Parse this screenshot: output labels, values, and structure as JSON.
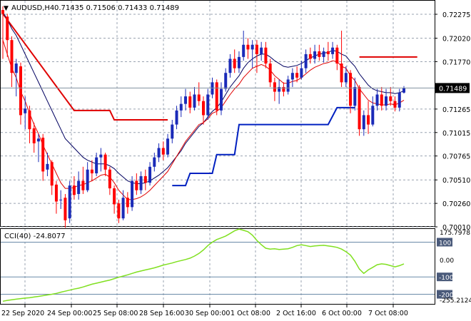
{
  "main_chart": {
    "header": {
      "symbol": "AUDUSD,H4",
      "ohlc": "0.71435 0.71506 0.71433 0.71489"
    },
    "current_price": "0.71489",
    "price_ticks": [
      "0.72275",
      "0.72020",
      "0.71770",
      "0.71265",
      "0.71015",
      "0.70765",
      "0.70510",
      "0.70260",
      "0.70010"
    ],
    "colors": {
      "bull_candle": "#1a2ab8",
      "bear_candle": "#ff0000",
      "ma_fast": "#e00000",
      "ma_slow": "#000060",
      "stop_upper": "#e00000",
      "stop_lower": "#0020c0",
      "grid": "#9aa3b0",
      "price_line": "#8090a0"
    }
  },
  "cci_panel": {
    "label": "CCI(40) -24.8077",
    "scale_ticks": [
      "175.7978",
      "100",
      "0.00",
      "-100",
      "-200",
      "-255.2124"
    ],
    "line_color": "#80e020"
  },
  "time_axis": {
    "labels": [
      "22 Sep 2020",
      "24 Sep 00:00",
      "25 Sep 08:00",
      "28 Sep 16:00",
      "30 Sep 00:00",
      "1 Oct 08:00",
      "2 Oct 16:00",
      "6 Oct 00:00",
      "7 Oct 08:00"
    ]
  },
  "chart_data": [
    {
      "type": "candlestick",
      "title": "AUDUSD,H4",
      "ylim": [
        0.7001,
        0.72275
      ],
      "last_price": 0.71489,
      "candles": [
        [
          0.7232,
          0.7228,
          0.7236,
          0.718
        ],
        [
          0.7225,
          0.72,
          0.7228,
          0.7182
        ],
        [
          0.72,
          0.7165,
          0.7204,
          0.715
        ],
        [
          0.7165,
          0.7175,
          0.718,
          0.714
        ],
        [
          0.7172,
          0.712,
          0.7176,
          0.711
        ],
        [
          0.7122,
          0.7127,
          0.714,
          0.7105
        ],
        [
          0.7125,
          0.7105,
          0.713,
          0.709
        ],
        [
          0.7106,
          0.709,
          0.7112,
          0.708
        ],
        [
          0.7092,
          0.7095,
          0.71,
          0.707
        ],
        [
          0.7096,
          0.706,
          0.71,
          0.705
        ],
        [
          0.7062,
          0.7068,
          0.708,
          0.7055
        ],
        [
          0.707,
          0.7045,
          0.7072,
          0.7035
        ],
        [
          0.7046,
          0.7028,
          0.705,
          0.7015
        ],
        [
          0.703,
          0.703,
          0.704,
          0.702
        ],
        [
          0.7032,
          0.7008,
          0.7036,
          0.7
        ],
        [
          0.701,
          0.7045,
          0.705,
          0.7005
        ],
        [
          0.7045,
          0.7035,
          0.7055,
          0.703
        ],
        [
          0.7036,
          0.705,
          0.706,
          0.703
        ],
        [
          0.705,
          0.704,
          0.7065,
          0.7036
        ],
        [
          0.704,
          0.7062,
          0.707,
          0.7038
        ],
        [
          0.7062,
          0.7058,
          0.7072,
          0.705
        ],
        [
          0.7058,
          0.7075,
          0.708,
          0.7055
        ],
        [
          0.7075,
          0.7078,
          0.7085,
          0.706
        ],
        [
          0.7078,
          0.7062,
          0.708,
          0.7055
        ],
        [
          0.7062,
          0.7042,
          0.7065,
          0.7035
        ],
        [
          0.7042,
          0.7025,
          0.7045,
          0.7015
        ],
        [
          0.7026,
          0.701,
          0.703,
          0.7005
        ],
        [
          0.701,
          0.7032,
          0.704,
          0.7008
        ],
        [
          0.7032,
          0.7022,
          0.7038,
          0.7015
        ],
        [
          0.7022,
          0.705,
          0.7055,
          0.7018
        ],
        [
          0.705,
          0.704,
          0.7058,
          0.7035
        ],
        [
          0.704,
          0.7055,
          0.706,
          0.7036
        ],
        [
          0.7055,
          0.7048,
          0.7062,
          0.704
        ],
        [
          0.7048,
          0.7065,
          0.707,
          0.7045
        ],
        [
          0.7065,
          0.7075,
          0.708,
          0.706
        ],
        [
          0.7075,
          0.7085,
          0.709,
          0.707
        ],
        [
          0.7085,
          0.7078,
          0.7092,
          0.7072
        ],
        [
          0.7078,
          0.7095,
          0.71,
          0.7075
        ],
        [
          0.7095,
          0.711,
          0.7115,
          0.709
        ],
        [
          0.711,
          0.7125,
          0.713,
          0.7105
        ],
        [
          0.7125,
          0.7132,
          0.714,
          0.7118
        ],
        [
          0.7132,
          0.714,
          0.7148,
          0.7125
        ],
        [
          0.714,
          0.7128,
          0.7145,
          0.7122
        ],
        [
          0.7128,
          0.7142,
          0.715,
          0.7125
        ],
        [
          0.7142,
          0.7135,
          0.7155,
          0.713
        ],
        [
          0.7135,
          0.712,
          0.714,
          0.711
        ],
        [
          0.712,
          0.7142,
          0.7148,
          0.7115
        ],
        [
          0.7142,
          0.7155,
          0.716,
          0.7138
        ],
        [
          0.7155,
          0.7125,
          0.7158,
          0.712
        ],
        [
          0.7125,
          0.7148,
          0.7155,
          0.712
        ],
        [
          0.7148,
          0.7165,
          0.717,
          0.7145
        ],
        [
          0.7165,
          0.718,
          0.7185,
          0.716
        ],
        [
          0.718,
          0.717,
          0.719,
          0.7165
        ],
        [
          0.717,
          0.7182,
          0.7188,
          0.7165
        ],
        [
          0.7182,
          0.7195,
          0.721,
          0.7178
        ],
        [
          0.7195,
          0.719,
          0.7202,
          0.718
        ],
        [
          0.719,
          0.7195,
          0.72,
          0.717
        ],
        [
          0.7195,
          0.7185,
          0.72,
          0.7165
        ],
        [
          0.7185,
          0.7192,
          0.7198,
          0.7178
        ],
        [
          0.7192,
          0.7175,
          0.7198,
          0.717
        ],
        [
          0.7175,
          0.7155,
          0.718,
          0.715
        ],
        [
          0.7155,
          0.7145,
          0.716,
          0.7135
        ],
        [
          0.7145,
          0.715,
          0.7158,
          0.7132
        ],
        [
          0.715,
          0.7145,
          0.7155,
          0.714
        ],
        [
          0.7145,
          0.7158,
          0.7162,
          0.7142
        ],
        [
          0.7158,
          0.7165,
          0.717,
          0.715
        ],
        [
          0.7165,
          0.716,
          0.7172,
          0.7155
        ],
        [
          0.716,
          0.717,
          0.7178,
          0.7158
        ],
        [
          0.717,
          0.7185,
          0.719,
          0.7165
        ],
        [
          0.7185,
          0.718,
          0.7192,
          0.7175
        ],
        [
          0.718,
          0.7188,
          0.7195,
          0.7175
        ],
        [
          0.7188,
          0.7182,
          0.7195,
          0.7178
        ],
        [
          0.7182,
          0.7188,
          0.7192,
          0.7176
        ],
        [
          0.7188,
          0.7185,
          0.7198,
          0.7178
        ],
        [
          0.7185,
          0.7192,
          0.7198,
          0.718
        ],
        [
          0.7192,
          0.7175,
          0.7195,
          0.7168
        ],
        [
          0.7175,
          0.7155,
          0.721,
          0.715
        ],
        [
          0.7155,
          0.7165,
          0.7172,
          0.715
        ],
        [
          0.7165,
          0.713,
          0.7168,
          0.7122
        ],
        [
          0.713,
          0.715,
          0.716,
          0.7125
        ],
        [
          0.715,
          0.7105,
          0.7152,
          0.7098
        ],
        [
          0.7105,
          0.712,
          0.7125,
          0.7098
        ],
        [
          0.712,
          0.711,
          0.7135,
          0.71
        ],
        [
          0.711,
          0.713,
          0.714,
          0.7108
        ],
        [
          0.713,
          0.7142,
          0.7148,
          0.7125
        ],
        [
          0.7142,
          0.713,
          0.715,
          0.7125
        ],
        [
          0.713,
          0.714,
          0.7148,
          0.7125
        ],
        [
          0.714,
          0.7135,
          0.715,
          0.713
        ],
        [
          0.7135,
          0.7128,
          0.714,
          0.7124
        ],
        [
          0.7128,
          0.7144,
          0.7148,
          0.7124
        ],
        [
          0.7144,
          0.7149,
          0.7151,
          0.7143
        ]
      ],
      "ma_fast": [
        0.72,
        0.7185,
        0.717,
        0.716,
        0.7145,
        0.7135,
        0.7122,
        0.711,
        0.71,
        0.7088,
        0.7078,
        0.7068,
        0.7058,
        0.7048,
        0.7042,
        0.7042,
        0.7043,
        0.7045,
        0.7046,
        0.7048,
        0.705,
        0.7053,
        0.7056,
        0.7057,
        0.7054,
        0.7048,
        0.704,
        0.7035,
        0.703,
        0.703,
        0.7031,
        0.7033,
        0.7036,
        0.704,
        0.7045,
        0.705,
        0.7055,
        0.706,
        0.7068,
        0.7076,
        0.7084,
        0.7092,
        0.7098,
        0.7104,
        0.711,
        0.7112,
        0.7116,
        0.7122,
        0.7124,
        0.7128,
        0.7135,
        0.7142,
        0.7148,
        0.7153,
        0.716,
        0.7165,
        0.717,
        0.7172,
        0.7174,
        0.7172,
        0.7168,
        0.7162,
        0.7158,
        0.7154,
        0.7154,
        0.7156,
        0.7157,
        0.716,
        0.7164,
        0.7168,
        0.7171,
        0.7173,
        0.7175,
        0.7176,
        0.7178,
        0.7177,
        0.7172,
        0.717,
        0.7162,
        0.7157,
        0.7148,
        0.7142,
        0.7136,
        0.7133,
        0.7132,
        0.7131,
        0.7131,
        0.7132,
        0.7131,
        0.7133,
        0.7136
      ],
      "ma_slow": [
        0.723,
        0.7222,
        0.7212,
        0.7205,
        0.7195,
        0.7185,
        0.7175,
        0.7165,
        0.7155,
        0.7145,
        0.7135,
        0.7125,
        0.7115,
        0.7105,
        0.7095,
        0.709,
        0.7085,
        0.708,
        0.7075,
        0.7072,
        0.707,
        0.7068,
        0.7068,
        0.7068,
        0.7066,
        0.7063,
        0.7058,
        0.7054,
        0.705,
        0.7048,
        0.7047,
        0.7047,
        0.7048,
        0.705,
        0.7053,
        0.7056,
        0.706,
        0.7064,
        0.707,
        0.7076,
        0.7082,
        0.709,
        0.7096,
        0.7102,
        0.7108,
        0.7112,
        0.7118,
        0.7124,
        0.7128,
        0.7134,
        0.7142,
        0.715,
        0.7156,
        0.7162,
        0.717,
        0.7176,
        0.718,
        0.7183,
        0.7185,
        0.7185,
        0.7182,
        0.7178,
        0.7175,
        0.7172,
        0.7171,
        0.7172,
        0.7173,
        0.7175,
        0.7178,
        0.7181,
        0.7183,
        0.7185,
        0.7186,
        0.7187,
        0.7189,
        0.7188,
        0.7185,
        0.7183,
        0.7177,
        0.7172,
        0.7164,
        0.7158,
        0.7152,
        0.7148,
        0.7146,
        0.7145,
        0.7144,
        0.7144,
        0.7143,
        0.7144,
        0.7146
      ],
      "stop_upper": [
        [
          0,
          0.7228
        ],
        [
          16,
          0.7125
        ],
        [
          24,
          0.7125
        ],
        [
          25,
          0.7115
        ],
        [
          37,
          0.7115
        ],
        [
          null,
          null
        ],
        [
          80,
          0.7182
        ],
        [
          93,
          0.7182
        ]
      ],
      "stop_lower": [
        [
          38,
          0.7045
        ],
        [
          41,
          0.7045
        ],
        [
          42,
          0.7058
        ],
        [
          47,
          0.7058
        ],
        [
          48,
          0.7078
        ],
        [
          52,
          0.7078
        ],
        [
          53,
          0.711
        ],
        [
          73,
          0.711
        ],
        [
          75,
          0.7128
        ],
        [
          79,
          0.7128
        ]
      ]
    },
    {
      "type": "line",
      "title": "CCI(40) -24.8077",
      "ylim": [
        -255.2124,
        175.7978
      ],
      "series": [
        {
          "name": "CCI(40)",
          "values": [
            -240,
            -235,
            -232,
            -228,
            -225,
            -222,
            -220,
            -216,
            -212,
            -208,
            -204,
            -200,
            -195,
            -188,
            -182,
            -176,
            -170,
            -165,
            -158,
            -150,
            -142,
            -136,
            -130,
            -124,
            -118,
            -110,
            -102,
            -95,
            -88,
            -80,
            -72,
            -66,
            -60,
            -54,
            -48,
            -40,
            -32,
            -26,
            -20,
            -12,
            -6,
            0,
            8,
            20,
            35,
            55,
            80,
            100,
            115,
            125,
            135,
            150,
            165,
            175,
            168,
            160,
            140,
            110,
            85,
            65,
            60,
            62,
            58,
            60,
            62,
            70,
            80,
            85,
            80,
            75,
            78,
            80,
            82,
            78,
            75,
            70,
            60,
            45,
            25,
            -10,
            -55,
            -80,
            -60,
            -45,
            -30,
            -25,
            -28,
            -35,
            -42,
            -35,
            -25
          ]
        }
      ]
    }
  ]
}
